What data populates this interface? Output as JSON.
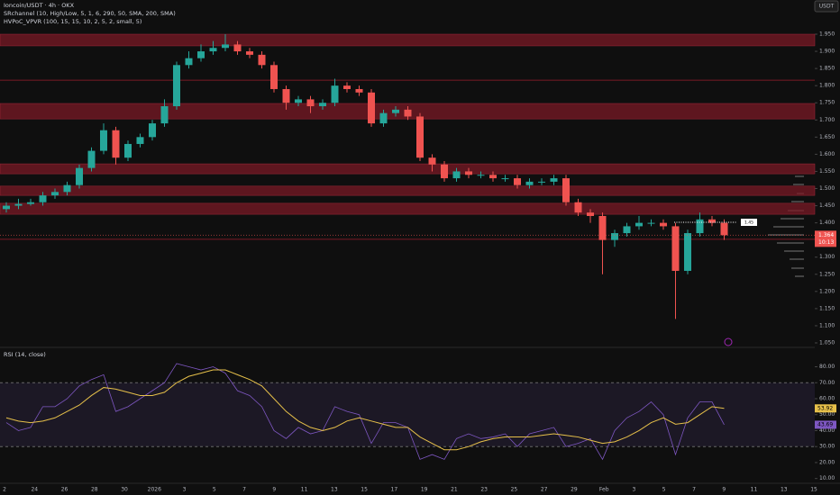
{
  "chart_data": [
    {
      "type": "candlestick",
      "title": "Ioncoin/USDT · 4h · OKX",
      "indicators": [
        "SRchannel (10, High/Low, 5, 1, 6, 290, 50, SMA, 200, SMA)",
        "HVPoC_VPVR (100, 15, 15, 10, 2, 5, 2, small, 5)"
      ],
      "currency": "USDT",
      "countdown": "10:13",
      "poc_label": "1.45",
      "up_color": "#26a69a",
      "down_color": "#ef5350",
      "zone_color": "#7a1a26",
      "ylim": [
        1.05,
        1.95
      ],
      "yticks": [
        {
          "value": 1.05,
          "label": "1.050"
        },
        {
          "value": 1.1,
          "label": "1.100"
        },
        {
          "value": 1.15,
          "label": "1.150"
        },
        {
          "value": 1.2,
          "label": "1.200"
        },
        {
          "value": 1.25,
          "label": "1.250"
        },
        {
          "value": 1.3,
          "label": "1.300"
        },
        {
          "value": 1.35,
          "label": "1.350"
        },
        {
          "value": 1.4,
          "label": "1.400"
        },
        {
          "value": 1.45,
          "label": "1.450"
        },
        {
          "value": 1.5,
          "label": "1.500"
        },
        {
          "value": 1.55,
          "label": "1.550"
        },
        {
          "value": 1.6,
          "label": "1.600"
        },
        {
          "value": 1.65,
          "label": "1.650"
        },
        {
          "value": 1.7,
          "label": "1.700"
        },
        {
          "value": 1.75,
          "label": "1.750"
        },
        {
          "value": 1.8,
          "label": "1.800"
        },
        {
          "value": 1.85,
          "label": "1.850"
        },
        {
          "value": 1.9,
          "label": "1.900"
        },
        {
          "value": 1.95,
          "label": "1.950"
        }
      ],
      "xtick_labels": [
        "2",
        "24",
        "26",
        "28",
        "30",
        "2026",
        "3",
        "5",
        "7",
        "9",
        "11",
        "13",
        "15",
        "17",
        "19",
        "21",
        "23",
        "25",
        "27",
        "29",
        "Feb",
        "3",
        "5",
        "7",
        "9",
        "11",
        "13",
        "15"
      ],
      "zones": [
        [
          1.916,
          1.95
        ],
        [
          1.703,
          1.748
        ],
        [
          1.543,
          1.572
        ],
        [
          1.48,
          1.507
        ],
        [
          1.425,
          1.457
        ]
      ],
      "levels": [
        1.816,
        1.352
      ],
      "open": [
        1.44,
        1.45,
        1.455,
        1.46,
        1.48,
        1.49,
        1.51,
        1.56,
        1.61,
        1.67,
        1.59,
        1.63,
        1.65,
        1.69,
        1.74,
        1.86,
        1.88,
        1.9,
        1.91,
        1.92,
        1.9,
        1.89,
        1.86,
        1.79,
        1.75,
        1.76,
        1.74,
        1.75,
        1.8,
        1.79,
        1.78,
        1.69,
        1.72,
        1.73,
        1.71,
        1.59,
        1.57,
        1.53,
        1.55,
        1.54,
        1.54,
        1.53,
        1.53,
        1.51,
        1.52,
        1.52,
        1.53,
        1.46,
        1.43,
        1.42,
        1.35,
        1.37,
        1.39,
        1.4,
        1.4,
        1.39,
        1.26,
        1.37,
        1.41,
        1.4
      ],
      "high": [
        1.46,
        1.47,
        1.47,
        1.49,
        1.5,
        1.52,
        1.57,
        1.62,
        1.69,
        1.68,
        1.64,
        1.66,
        1.7,
        1.76,
        1.87,
        1.9,
        1.92,
        1.93,
        1.95,
        1.93,
        1.91,
        1.9,
        1.87,
        1.8,
        1.77,
        1.77,
        1.76,
        1.82,
        1.81,
        1.8,
        1.79,
        1.73,
        1.74,
        1.74,
        1.72,
        1.6,
        1.58,
        1.56,
        1.56,
        1.55,
        1.55,
        1.54,
        1.54,
        1.53,
        1.53,
        1.54,
        1.54,
        1.47,
        1.44,
        1.43,
        1.38,
        1.4,
        1.42,
        1.41,
        1.41,
        1.4,
        1.38,
        1.43,
        1.42,
        1.41
      ],
      "low": [
        1.43,
        1.44,
        1.45,
        1.45,
        1.47,
        1.48,
        1.5,
        1.55,
        1.6,
        1.57,
        1.58,
        1.62,
        1.64,
        1.68,
        1.73,
        1.85,
        1.87,
        1.89,
        1.9,
        1.89,
        1.88,
        1.85,
        1.78,
        1.73,
        1.74,
        1.72,
        1.73,
        1.74,
        1.78,
        1.77,
        1.68,
        1.68,
        1.71,
        1.7,
        1.58,
        1.55,
        1.52,
        1.52,
        1.53,
        1.53,
        1.52,
        1.52,
        1.5,
        1.5,
        1.51,
        1.51,
        1.45,
        1.42,
        1.4,
        1.25,
        1.33,
        1.36,
        1.38,
        1.39,
        1.38,
        1.12,
        1.25,
        1.36,
        1.39,
        1.35
      ],
      "close": [
        1.45,
        1.455,
        1.46,
        1.48,
        1.49,
        1.51,
        1.56,
        1.61,
        1.67,
        1.59,
        1.63,
        1.65,
        1.69,
        1.74,
        1.86,
        1.88,
        1.9,
        1.91,
        1.92,
        1.9,
        1.89,
        1.86,
        1.79,
        1.75,
        1.76,
        1.74,
        1.75,
        1.8,
        1.79,
        1.78,
        1.69,
        1.72,
        1.73,
        1.71,
        1.59,
        1.57,
        1.53,
        1.55,
        1.54,
        1.54,
        1.53,
        1.53,
        1.51,
        1.52,
        1.52,
        1.53,
        1.46,
        1.43,
        1.42,
        1.35,
        1.37,
        1.39,
        1.4,
        1.4,
        1.39,
        1.26,
        1.37,
        1.41,
        1.4,
        1.364
      ]
    },
    {
      "type": "line",
      "title": "RSI (14, close)",
      "ylim": [
        7,
        91
      ],
      "yticks": [
        {
          "value": 10,
          "label": "10.00"
        },
        {
          "value": 20,
          "label": "20.00"
        },
        {
          "value": 30,
          "label": "30.00"
        },
        {
          "value": 40,
          "label": "40.00"
        },
        {
          "value": 50,
          "label": "50.00"
        },
        {
          "value": 60,
          "label": "60.00"
        },
        {
          "value": 70,
          "label": "70.00"
        },
        {
          "value": 80,
          "label": "80.00"
        }
      ],
      "band": [
        30,
        70
      ],
      "series": [
        {
          "name": "RSI",
          "color": "#7e57c2",
          "values": [
            45,
            40,
            42,
            55,
            55,
            60,
            68,
            72,
            75,
            52,
            55,
            60,
            65,
            70,
            82,
            80,
            78,
            80,
            76,
            65,
            62,
            55,
            40,
            35,
            42,
            38,
            40,
            55,
            52,
            50,
            32,
            45,
            45,
            42,
            22,
            25,
            22,
            35,
            38,
            35,
            36,
            38,
            30,
            38,
            40,
            42,
            30,
            32,
            35,
            22,
            40,
            48,
            52,
            58,
            50,
            25,
            48,
            58,
            58,
            43.69
          ]
        },
        {
          "name": "RSI-based MA",
          "color": "#e6c04a",
          "values": [
            48,
            46,
            45,
            46,
            48,
            52,
            56,
            62,
            67,
            66,
            64,
            62,
            62,
            64,
            70,
            74,
            76,
            78,
            78,
            75,
            72,
            68,
            60,
            52,
            46,
            42,
            40,
            42,
            46,
            48,
            46,
            44,
            42,
            42,
            36,
            32,
            28,
            28,
            30,
            33,
            35,
            36,
            36,
            36,
            37,
            38,
            37,
            36,
            34,
            32,
            33,
            36,
            40,
            45,
            48,
            44,
            45,
            50,
            55,
            53.92
          ]
        }
      ]
    }
  ]
}
